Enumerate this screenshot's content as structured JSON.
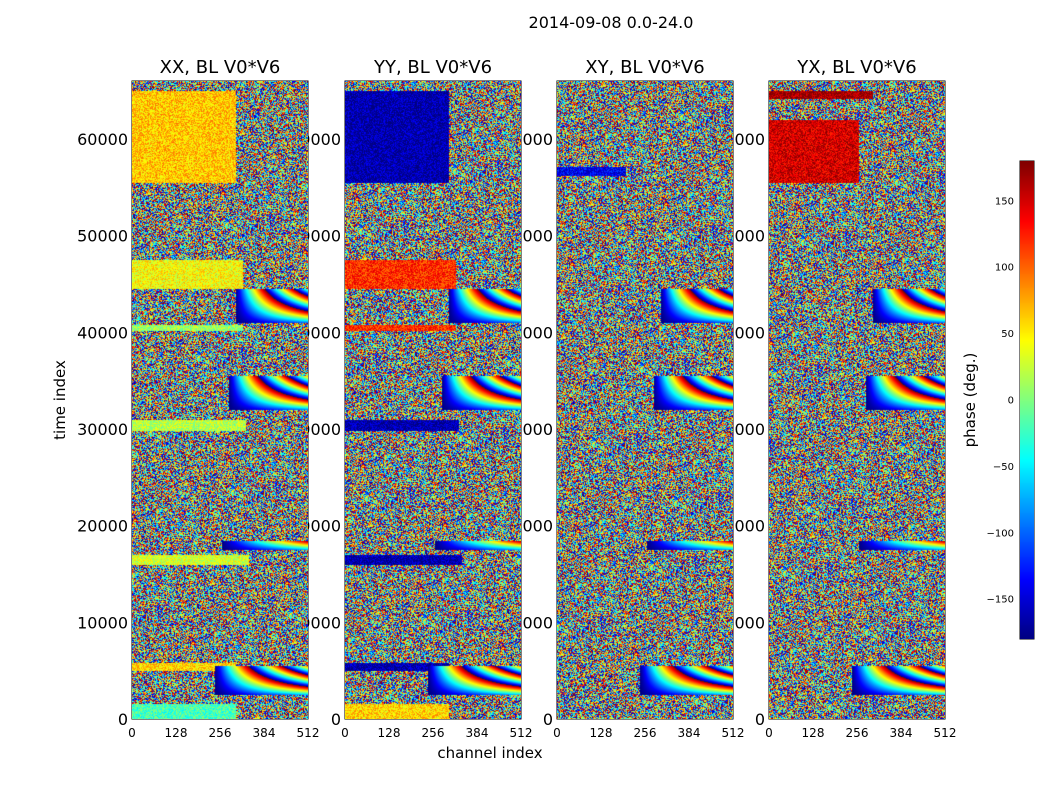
{
  "figure": {
    "suptitle": "2014-09-08 0.0-24.0",
    "xlabel": "channel index",
    "ylabel": "time index",
    "colorbar_label": "phase (deg.)"
  },
  "chart_data": {
    "type": "heatmap",
    "title": "2014-09-08 0.0-24.0",
    "xlabel": "channel index",
    "ylabel": "time index",
    "xlim": [
      0,
      512
    ],
    "ylim": [
      0,
      66000
    ],
    "x_ticks": [
      0,
      128,
      256,
      384,
      512
    ],
    "y_ticks": [
      0,
      10000,
      20000,
      30000,
      40000,
      50000,
      60000
    ],
    "colormap": "jet",
    "colorbar": {
      "label": "phase (deg.)",
      "range": [
        -180,
        180
      ],
      "ticks": [
        -150,
        -100,
        -50,
        0,
        50,
        100,
        150
      ],
      "tick_labels": [
        "−150",
        "−100",
        "−50",
        "0",
        "50",
        "100",
        "150"
      ]
    },
    "panels": [
      {
        "title": "XX, BL V0*V6",
        "coherent_bands": [
          {
            "y0": 55500,
            "y1": 65000,
            "x1": 300,
            "phase": 65
          },
          {
            "y0": 44500,
            "y1": 47500,
            "x1": 320,
            "phase": 45
          },
          {
            "y0": 29800,
            "y1": 31000,
            "x1": 330,
            "phase": 20
          },
          {
            "y0": 40200,
            "y1": 40800,
            "x1": 320,
            "phase": 10
          },
          {
            "y0": 16000,
            "y1": 17000,
            "x1": 340,
            "phase": 30
          },
          {
            "y0": 5000,
            "y1": 5800,
            "x1": 300,
            "phase": 60
          },
          {
            "y0": 0,
            "y1": 1600,
            "x1": 300,
            "phase": -20
          }
        ]
      },
      {
        "title": "YY, BL V0*V6",
        "coherent_bands": [
          {
            "y0": 55500,
            "y1": 65000,
            "x1": 300,
            "phase": -165
          },
          {
            "y0": 44500,
            "y1": 47500,
            "x1": 320,
            "phase": 120
          },
          {
            "y0": 29800,
            "y1": 31000,
            "x1": 330,
            "phase": -165
          },
          {
            "y0": 40200,
            "y1": 40800,
            "x1": 320,
            "phase": 120
          },
          {
            "y0": 16000,
            "y1": 17000,
            "x1": 340,
            "phase": -165
          },
          {
            "y0": 5000,
            "y1": 5800,
            "x1": 300,
            "phase": -165
          },
          {
            "y0": 0,
            "y1": 1600,
            "x1": 300,
            "phase": 60
          }
        ]
      },
      {
        "title": "XY, BL V0*V6",
        "coherent_bands": [
          {
            "y0": 56200,
            "y1": 57200,
            "x1": 200,
            "phase": -140
          }
        ]
      },
      {
        "title": "YX, BL V0*V6",
        "coherent_bands": [
          {
            "y0": 55500,
            "y1": 62000,
            "x1": 260,
            "phase": 150
          },
          {
            "y0": 64200,
            "y1": 65000,
            "x1": 300,
            "phase": 170
          }
        ]
      }
    ],
    "fringe_bands": [
      {
        "y0": 41000,
        "y1": 44500,
        "x0": 300
      },
      {
        "y0": 32000,
        "y1": 35500,
        "x0": 280
      },
      {
        "y0": 17500,
        "y1": 18500,
        "x0": 260
      },
      {
        "y0": 2500,
        "y1": 5500,
        "x0": 240
      }
    ]
  }
}
